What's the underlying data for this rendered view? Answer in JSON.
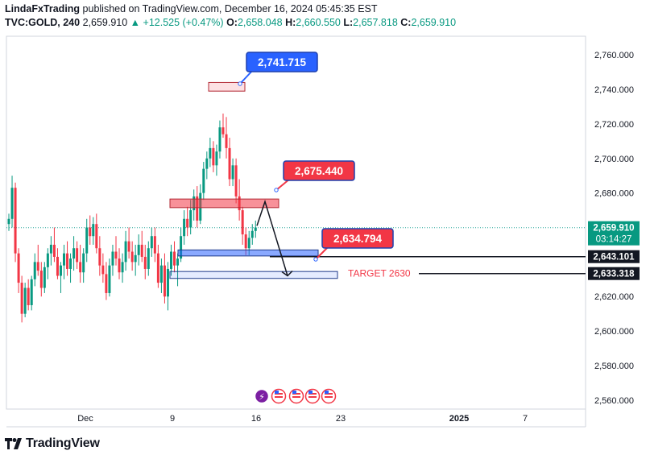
{
  "header": {
    "author": "LindaFxTrading",
    "published": "published on TradingView.com, December 16, 2024 05:45:35 EST",
    "symbol": "TVC:GOLD, 240",
    "last": "2,659.910",
    "arrow": "▲",
    "change": "+12.525 (+0.47%)",
    "o_label": "O:",
    "o_value": "2,658.048",
    "h_label": "H:",
    "h_value": "2,660.550",
    "l_label": "L:",
    "l_value": "2,657.818",
    "c_label": "C:",
    "c_value": "2,659.910"
  },
  "footer": {
    "brand": "TradingView"
  },
  "colors": {
    "up": "#089981",
    "down": "#f23645",
    "blue": "#2962ff",
    "red_label": "#f23645",
    "dark_label": "#131722",
    "price_line": "#26a69a"
  },
  "chart_data": {
    "type": "candlestick",
    "symbol": "TVC:GOLD",
    "interval": "240",
    "ylim": [
      2545,
      2772
    ],
    "y_ticks": [
      {
        "value": 2760,
        "label": "2,760.000"
      },
      {
        "value": 2740,
        "label": "2,740.000"
      },
      {
        "value": 2720,
        "label": "2,720.000"
      },
      {
        "value": 2700,
        "label": "2,700.000"
      },
      {
        "value": 2680,
        "label": "2,680.000"
      },
      {
        "value": 2620,
        "label": "2,620.000"
      },
      {
        "value": 2600,
        "label": "2,600.000"
      },
      {
        "value": 2580,
        "label": "2,580.000"
      },
      {
        "value": 2560,
        "label": "2,560.000"
      }
    ],
    "x_ticks": [
      {
        "label": "Dec",
        "bold": false
      },
      {
        "label": "9",
        "bold": false
      },
      {
        "label": "16",
        "bold": false
      },
      {
        "label": "23",
        "bold": false
      },
      {
        "label": "2025",
        "bold": true
      },
      {
        "label": "7",
        "bold": false
      }
    ],
    "last_price": {
      "value": 2659.91,
      "label": "2,659.910",
      "countdown": "03:14:27"
    },
    "price_tags": [
      {
        "value": 2643.101,
        "label": "2,643.101"
      },
      {
        "value": 2633.318,
        "label": "2,633.318"
      }
    ],
    "callouts": [
      {
        "label": "2,741.715",
        "value": 2741.715,
        "color": "blue"
      },
      {
        "label": "2,675.440",
        "value": 2675.44,
        "color": "red"
      },
      {
        "label": "2,634.794",
        "value": 2634.794,
        "color": "red"
      }
    ],
    "zones": [
      {
        "name": "top-target-zone",
        "from": 2739.0,
        "to": 2744.0
      },
      {
        "name": "resistance-zone",
        "from": 2671.5,
        "to": 2676.5
      },
      {
        "name": "support-zone",
        "from": 2643.5,
        "to": 2647.0
      },
      {
        "name": "target-zone",
        "from": 2630.5,
        "to": 2634.5
      }
    ],
    "annotations": [
      {
        "label": "TARGET 2630",
        "value": 2633.318
      }
    ],
    "projection": [
      {
        "value": 2661
      },
      {
        "value": 2675
      },
      {
        "value": 2632
      }
    ],
    "candles": [
      [
        2662,
        2668,
        2658,
        2665
      ],
      [
        2665,
        2690,
        2660,
        2683
      ],
      [
        2683,
        2686,
        2640,
        2645
      ],
      [
        2645,
        2648,
        2622,
        2628
      ],
      [
        2628,
        2632,
        2605,
        2610
      ],
      [
        2610,
        2628,
        2608,
        2625
      ],
      [
        2625,
        2630,
        2612,
        2615
      ],
      [
        2615,
        2632,
        2612,
        2630
      ],
      [
        2630,
        2645,
        2626,
        2640
      ],
      [
        2640,
        2650,
        2632,
        2635
      ],
      [
        2635,
        2640,
        2620,
        2625
      ],
      [
        2625,
        2640,
        2622,
        2637
      ],
      [
        2637,
        2648,
        2630,
        2645
      ],
      [
        2645,
        2655,
        2638,
        2650
      ],
      [
        2650,
        2660,
        2640,
        2643
      ],
      [
        2643,
        2648,
        2630,
        2632
      ],
      [
        2632,
        2640,
        2622,
        2638
      ],
      [
        2638,
        2650,
        2630,
        2645
      ],
      [
        2645,
        2652,
        2632,
        2636
      ],
      [
        2636,
        2645,
        2628,
        2642
      ],
      [
        2642,
        2655,
        2635,
        2648
      ],
      [
        2648,
        2652,
        2636,
        2640
      ],
      [
        2640,
        2650,
        2628,
        2634
      ],
      [
        2634,
        2648,
        2628,
        2645
      ],
      [
        2645,
        2665,
        2640,
        2660
      ],
      [
        2660,
        2667,
        2650,
        2655
      ],
      [
        2655,
        2666,
        2650,
        2662
      ],
      [
        2662,
        2668,
        2645,
        2648
      ],
      [
        2648,
        2655,
        2632,
        2638
      ],
      [
        2638,
        2645,
        2628,
        2633
      ],
      [
        2633,
        2640,
        2618,
        2622
      ],
      [
        2622,
        2642,
        2620,
        2638
      ],
      [
        2638,
        2650,
        2632,
        2646
      ],
      [
        2646,
        2655,
        2638,
        2642
      ],
      [
        2642,
        2648,
        2630,
        2634
      ],
      [
        2634,
        2645,
        2628,
        2640
      ],
      [
        2640,
        2658,
        2635,
        2652
      ],
      [
        2652,
        2660,
        2642,
        2646
      ],
      [
        2646,
        2652,
        2635,
        2640
      ],
      [
        2640,
        2650,
        2632,
        2644
      ],
      [
        2644,
        2656,
        2638,
        2650
      ],
      [
        2650,
        2658,
        2640,
        2643
      ],
      [
        2643,
        2650,
        2630,
        2636
      ],
      [
        2636,
        2652,
        2632,
        2648
      ],
      [
        2648,
        2660,
        2643,
        2655
      ],
      [
        2655,
        2660,
        2640,
        2645
      ],
      [
        2645,
        2650,
        2625,
        2628
      ],
      [
        2628,
        2642,
        2622,
        2638
      ],
      [
        2638,
        2645,
        2616,
        2620
      ],
      [
        2620,
        2640,
        2612,
        2636
      ],
      [
        2636,
        2650,
        2632,
        2646
      ],
      [
        2646,
        2652,
        2634,
        2638
      ],
      [
        2638,
        2645,
        2626,
        2642
      ],
      [
        2642,
        2660,
        2640,
        2655
      ],
      [
        2655,
        2670,
        2650,
        2665
      ],
      [
        2665,
        2672,
        2655,
        2660
      ],
      [
        2660,
        2676,
        2656,
        2670
      ],
      [
        2670,
        2682,
        2664,
        2678
      ],
      [
        2678,
        2684,
        2660,
        2664
      ],
      [
        2664,
        2685,
        2662,
        2680
      ],
      [
        2680,
        2698,
        2676,
        2694
      ],
      [
        2694,
        2704,
        2688,
        2700
      ],
      [
        2700,
        2712,
        2695,
        2706
      ],
      [
        2706,
        2710,
        2692,
        2696
      ],
      [
        2696,
        2708,
        2690,
        2704
      ],
      [
        2704,
        2722,
        2700,
        2718
      ],
      [
        2718,
        2726,
        2712,
        2714
      ],
      [
        2714,
        2724,
        2700,
        2706
      ],
      [
        2706,
        2712,
        2684,
        2688
      ],
      [
        2688,
        2700,
        2684,
        2696
      ],
      [
        2696,
        2700,
        2674,
        2678
      ],
      [
        2678,
        2688,
        2664,
        2670
      ],
      [
        2670,
        2672,
        2650,
        2656
      ],
      [
        2656,
        2660,
        2644,
        2648
      ],
      [
        2648,
        2658,
        2644,
        2654
      ],
      [
        2654,
        2662,
        2650,
        2658
      ],
      [
        2658,
        2664,
        2654,
        2660
      ]
    ]
  }
}
